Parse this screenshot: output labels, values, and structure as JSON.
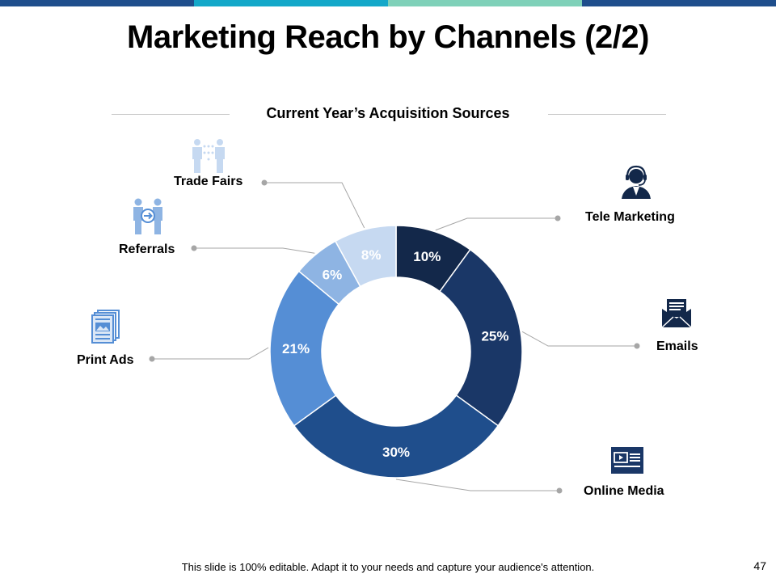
{
  "slide": {
    "title": "Marketing Reach by Channels (2/2)",
    "subtitle": "Current Year’s Acquisition Sources",
    "footer": "This slide is 100% editable. Adapt it to your needs and capture your audience's attention.",
    "page_number": "47",
    "top_bar_colors": [
      "#1f4e8c",
      "#14a8c9",
      "#7fd1b9",
      "#1f4e8c"
    ]
  },
  "chart_data": {
    "type": "pie",
    "title": "Current Year’s Acquisition Sources",
    "donut": true,
    "categories": [
      "Tele Marketing",
      "Emails",
      "Online Media",
      "Print Ads",
      "Referrals",
      "Trade Fairs"
    ],
    "values": [
      10,
      25,
      30,
      21,
      6,
      8
    ],
    "value_labels": [
      "10%",
      "25%",
      "30%",
      "21%",
      "6%",
      "8%"
    ],
    "colors": [
      "#13284a",
      "#1a3767",
      "#1f4e8c",
      "#558ed5",
      "#8eb4e3",
      "#c6d9f1"
    ],
    "label_text_colors": [
      "#ffffff",
      "#ffffff",
      "#ffffff",
      "#ffffff",
      "#ffffff",
      "#ffffff"
    ]
  },
  "channels": [
    {
      "label": "Tele Marketing",
      "icon": "headset-agent-icon"
    },
    {
      "label": "Emails",
      "icon": "envelope-icon"
    },
    {
      "label": "Online Media",
      "icon": "video-media-icon"
    },
    {
      "label": "Print Ads",
      "icon": "newspaper-icon"
    },
    {
      "label": "Referrals",
      "icon": "referral-people-icon"
    },
    {
      "label": "Trade Fairs",
      "icon": "trade-fair-people-icon"
    }
  ]
}
